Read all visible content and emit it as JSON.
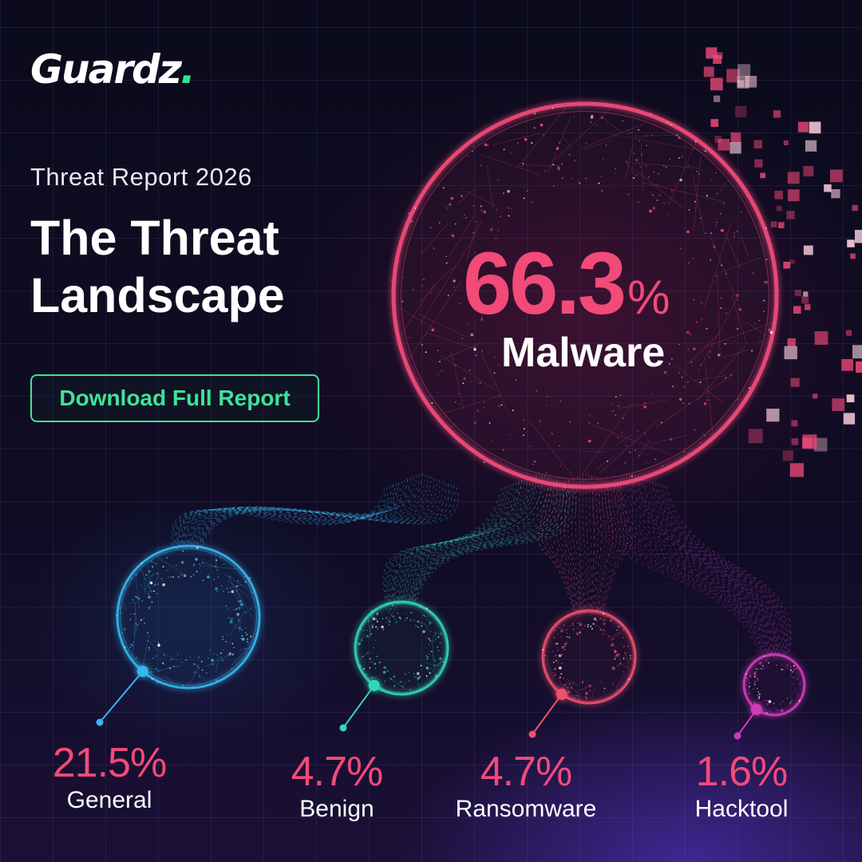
{
  "brand": {
    "name": "Guardz",
    "dot": ".",
    "accent": "#2ee68f"
  },
  "header": {
    "eyebrow": "Threat Report 2026",
    "title_line1": "The Threat",
    "title_line2": "Landscape"
  },
  "cta": {
    "label": "Download Full Report",
    "color": "#3ee39a"
  },
  "chart_data": {
    "type": "bubble",
    "unit": "%",
    "categories": [
      "Malware",
      "General",
      "Benign",
      "Ransomware",
      "Hacktool"
    ],
    "values": [
      66.3,
      21.5,
      4.7,
      4.7,
      1.6
    ],
    "value_labels": [
      "66.3",
      "21.5%",
      "4.7%",
      "4.7%",
      "1.6%"
    ],
    "colors": [
      "#f24a79",
      "#38b6ee",
      "#33d6b8",
      "#f0506e",
      "#d03ab8"
    ],
    "percent_symbol": "%"
  }
}
